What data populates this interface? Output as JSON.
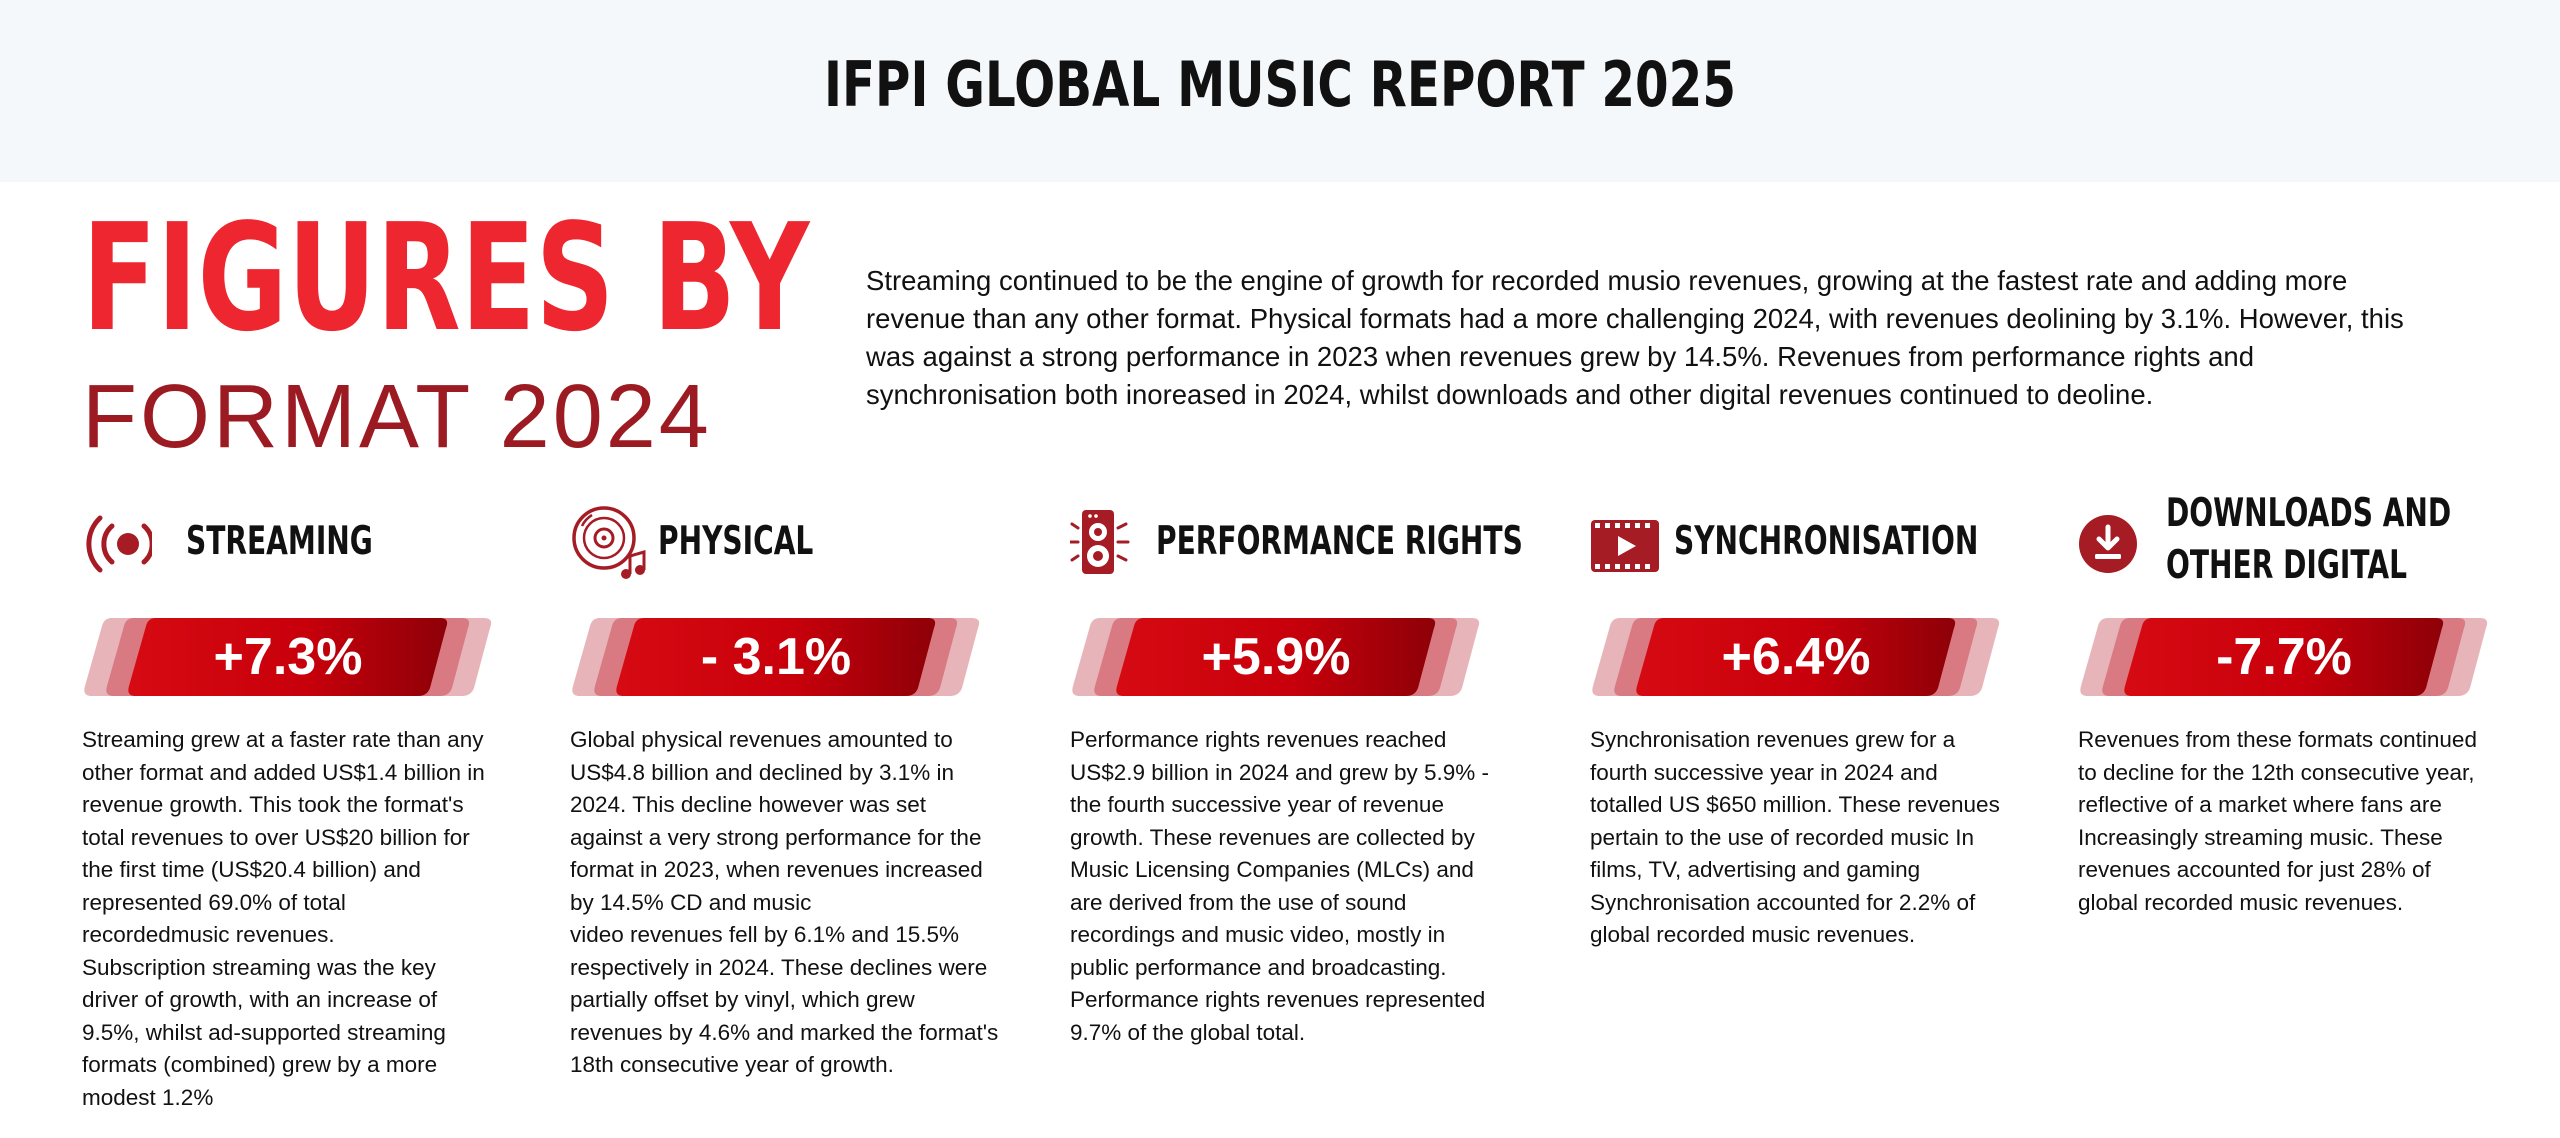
{
  "header": {
    "title": "IFPI GLOBAL MUSIC REPORT 2025"
  },
  "heading": {
    "line1": "FIGURES BY",
    "line2": "FORMAT 2024"
  },
  "intro": "Streaming continued to be the engine of growth for recorded musio revenues, growing at the fastest rate and adding more revenue than any other format. Physical formats had a more challenging 2024, with revenues deolining by 3.1%. However, this was against a strong performance in 2023 when revenues grew by 14.5%. Revenues from performance rights and synchronisation both inoreased in 2024, whilst downloads and other digital revenues continued to deoline.",
  "colors": {
    "accent_red": "#ee2630",
    "dark_red": "#9c1b22",
    "pill_red": "#d30a14",
    "icon_red": "#a51c24"
  },
  "formats": [
    {
      "title": "STREAMING",
      "icon": "broadcast-icon",
      "change": "+7.3%",
      "body_lines": [
        "Streaming grew at a faster rate than any",
        "other format and added US$1.4 billion in",
        "revenue growth. This took the format's",
        "total revenues to over US$20 billion for",
        "the first time (US$20.4 billion) and",
        "represented 69.0% of total",
        "recordedmusic revenues.",
        "Subscription streaming was the key",
        "driver of growth, with an increase of",
        "9.5%, whilst ad-supported streaming",
        "formats (combined) grew by a more",
        "modest 1.2%"
      ]
    },
    {
      "title": "PHYSICAL",
      "icon": "vinyl-record-icon",
      "change": "- 3.1%",
      "body_lines": [
        "Global physical revenues amounted to",
        "US$4.8 billion and declined by 3.1% in",
        "2024. This decline however was set",
        "against a very strong performance for the",
        "format in 2023, when revenues increased",
        "by 14.5% CD and music",
        "video revenues fell by 6.1% and 15.5%",
        "respectively in 2024. These declines were",
        "partially offset by vinyl, which grew",
        "revenues by 4.6% and marked the format's",
        "18th consecutive year of growth."
      ]
    },
    {
      "title": "PERFORMANCE RIGHTS",
      "icon": "speaker-icon",
      "change": "+5.9%",
      "body_lines": [
        "Performance rights revenues reached",
        "US$2.9 billion in 2024 and grew by 5.9% -",
        "the fourth successive year of revenue",
        "growth. These revenues are collected by",
        "Music Licensing Companies (MLCs) and",
        "are derived from the use of sound",
        "recordings and music video, mostly in",
        "public performance and broadcasting.",
        "Performance rights revenues represented",
        "9.7% of the global total."
      ]
    },
    {
      "title": "SYNCHRONISATION",
      "icon": "film-play-icon",
      "change": "+6.4%",
      "body_lines": [
        "Synchronisation revenues grew for a",
        "fourth successive year in 2024 and",
        "totalled US $650 million. These revenues",
        "pertain to the use of recorded music In",
        "films, TV, advertising and gaming",
        "Synchronisation accounted for 2.2% of",
        "global recorded music revenues."
      ]
    },
    {
      "title_lines": [
        "DOWNLOADS AND",
        "OTHER DIGITAL"
      ],
      "icon": "download-icon",
      "change": "-7.7%",
      "body_lines": [
        "Revenues from these formats continued",
        "to decline for the 12th consecutive year,",
        "reflective of a market where fans are",
        "Increasingly streaming music. These",
        "revenues accounted for just 28% of",
        "global recorded music revenues."
      ]
    }
  ]
}
